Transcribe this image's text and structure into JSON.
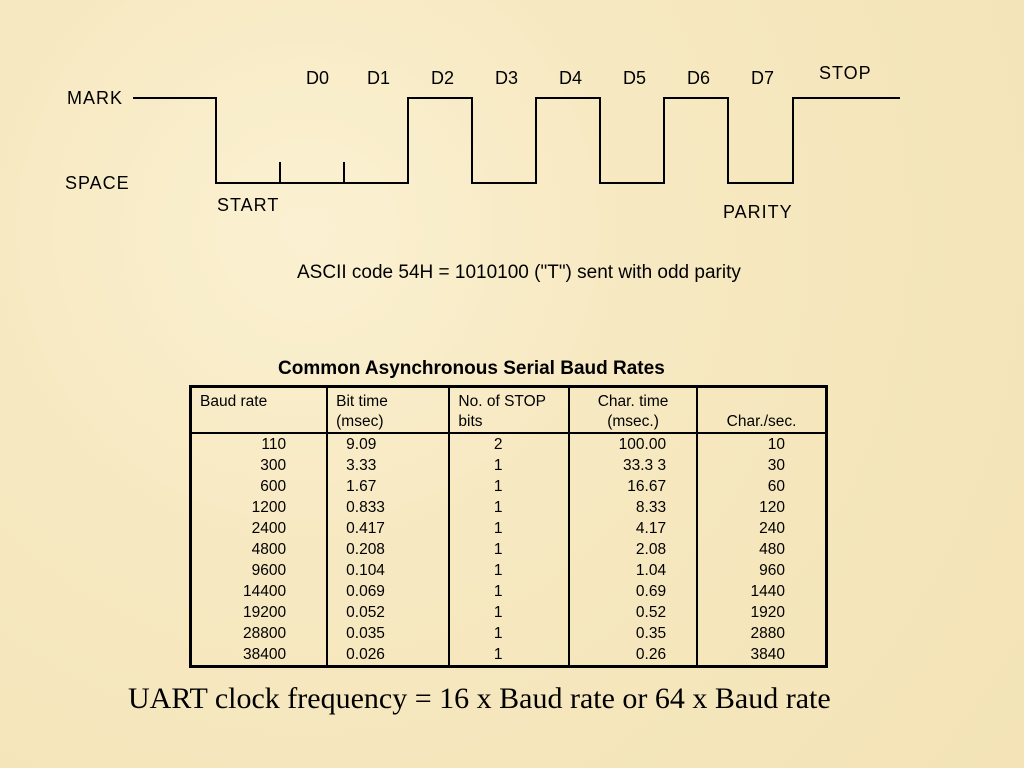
{
  "diagram": {
    "mark_label": "MARK",
    "space_label": "SPACE",
    "start_label": "START",
    "parity_label": "PARITY",
    "stop_label": "STOP",
    "bit_labels": [
      "D0",
      "D1",
      "D2",
      "D3",
      "D4",
      "D5",
      "D6",
      "D7"
    ],
    "caption": "ASCII code 54H = 1010100 (\"T\") sent with odd parity"
  },
  "table": {
    "title": "Common Asynchronous Serial Baud Rates",
    "headers": [
      [
        "Baud rate",
        ""
      ],
      [
        "Bit time",
        "(msec)"
      ],
      [
        "No. of STOP",
        "bits"
      ],
      [
        "Char. time",
        "(msec.)"
      ],
      [
        "",
        "Char./sec."
      ]
    ],
    "rows": [
      [
        "110",
        "9.09",
        "2",
        "100.00",
        "10"
      ],
      [
        "300",
        "3.33",
        "1",
        "33.3 3",
        "30"
      ],
      [
        "600",
        "1.67",
        "1",
        "16.67",
        "60"
      ],
      [
        "1200",
        "0.833",
        "1",
        "8.33",
        "120"
      ],
      [
        "2400",
        "0.417",
        "1",
        "4.17",
        "240"
      ],
      [
        "4800",
        "0.208",
        "1",
        "2.08",
        "480"
      ],
      [
        "9600",
        "0.104",
        "1",
        "1.04",
        "960"
      ],
      [
        "14400",
        "0.069",
        "1",
        "0.69",
        "1440"
      ],
      [
        "19200",
        "0.052",
        "1",
        "0.52",
        "1920"
      ],
      [
        "28800",
        "0.035",
        "1",
        "0.35",
        "2880"
      ],
      [
        "38400",
        "0.026",
        "1",
        "0.26",
        "3840"
      ]
    ]
  },
  "footer": "UART clock frequency = 16 x Baud rate or 64 x Baud rate"
}
